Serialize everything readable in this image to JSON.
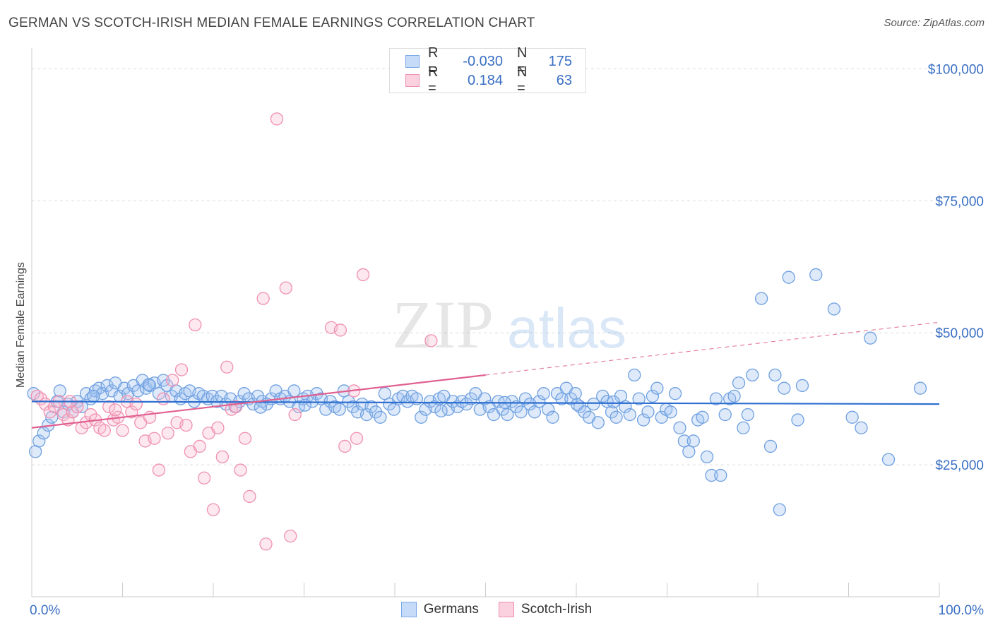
{
  "title": "GERMAN VS SCOTCH-IRISH MEDIAN FEMALE EARNINGS CORRELATION CHART",
  "source": "Source: ZipAtlas.com",
  "watermark": {
    "zip": "ZIP",
    "atlas": "atlas"
  },
  "legend": {
    "rows": [
      {
        "r_label": "R =",
        "r_value": "-0.030",
        "n_label": "N =",
        "n_value": "175",
        "color": "#7aa8e8",
        "fill": "#c5dbf7"
      },
      {
        "r_label": "R =",
        "r_value": "0.184",
        "n_label": "N =",
        "n_value": "63",
        "color": "#f090b0",
        "fill": "#fbd0df"
      }
    ]
  },
  "bottom_legend": [
    {
      "label": "Germans",
      "color": "#7aa8e8",
      "fill": "#c5dbf7"
    },
    {
      "label": "Scotch-Irish",
      "color": "#f090b0",
      "fill": "#fbd0df"
    }
  ],
  "chart_data": {
    "type": "scatter",
    "ylabel": "Median Female Earnings",
    "xlim": [
      0,
      100
    ],
    "ylim": [
      0,
      105000
    ],
    "y_ticks": [
      {
        "value": 25000,
        "label": "$25,000"
      },
      {
        "value": 50000,
        "label": "$50,000"
      },
      {
        "value": 75000,
        "label": "$75,000"
      },
      {
        "value": 100000,
        "label": "$100,000"
      }
    ],
    "x_tick_labels": {
      "left": "0.0%",
      "right": "100.0%"
    },
    "grid": true,
    "series": [
      {
        "name": "Germans",
        "color": "#6fa0e0",
        "fill": "rgba(160,196,240,0.35)",
        "trend": {
          "x0": 0,
          "y0": 37000,
          "x1": 100,
          "y1": 36500,
          "color": "#2f6fd0"
        },
        "points": [
          [
            0.4,
            27500
          ],
          [
            0.8,
            29500
          ],
          [
            1.3,
            31000
          ],
          [
            1.8,
            32500
          ],
          [
            2.2,
            34000
          ],
          [
            2.8,
            37000
          ],
          [
            3.1,
            39000
          ],
          [
            3.5,
            35000
          ],
          [
            4.0,
            36500
          ],
          [
            4.5,
            35000
          ],
          [
            5.0,
            37000
          ],
          [
            5.5,
            36000
          ],
          [
            6.0,
            38500
          ],
          [
            6.5,
            37500
          ],
          [
            7.0,
            39000
          ],
          [
            7.4,
            39500
          ],
          [
            7.8,
            38500
          ],
          [
            8.3,
            40000
          ],
          [
            8.8,
            39000
          ],
          [
            9.2,
            40500
          ],
          [
            9.7,
            38000
          ],
          [
            10.2,
            39500
          ],
          [
            10.6,
            38500
          ],
          [
            11.2,
            40000
          ],
          [
            11.7,
            39000
          ],
          [
            12.2,
            41000
          ],
          [
            12.6,
            39500
          ],
          [
            13.0,
            40000
          ],
          [
            13.5,
            40500
          ],
          [
            14.0,
            38500
          ],
          [
            14.5,
            41000
          ],
          [
            14.9,
            40000
          ],
          [
            15.4,
            38000
          ],
          [
            15.9,
            39000
          ],
          [
            16.4,
            37500
          ],
          [
            16.9,
            38500
          ],
          [
            17.4,
            39000
          ],
          [
            17.9,
            37000
          ],
          [
            18.4,
            38500
          ],
          [
            18.9,
            38000
          ],
          [
            19.4,
            37500
          ],
          [
            19.9,
            38000
          ],
          [
            20.4,
            37000
          ],
          [
            20.9,
            38000
          ],
          [
            21.4,
            36500
          ],
          [
            21.9,
            37500
          ],
          [
            22.4,
            36000
          ],
          [
            22.9,
            37000
          ],
          [
            23.4,
            38500
          ],
          [
            23.9,
            37500
          ],
          [
            24.4,
            36500
          ],
          [
            24.9,
            38000
          ],
          [
            25.4,
            37000
          ],
          [
            25.9,
            36500
          ],
          [
            26.4,
            37500
          ],
          [
            26.9,
            39000
          ],
          [
            27.4,
            37500
          ],
          [
            27.9,
            38000
          ],
          [
            28.4,
            37000
          ],
          [
            28.9,
            39000
          ],
          [
            29.4,
            36000
          ],
          [
            29.9,
            37500
          ],
          [
            30.4,
            38000
          ],
          [
            30.9,
            37000
          ],
          [
            31.4,
            38500
          ],
          [
            31.9,
            37500
          ],
          [
            32.4,
            35500
          ],
          [
            32.9,
            37000
          ],
          [
            33.4,
            36000
          ],
          [
            33.9,
            35500
          ],
          [
            34.4,
            39000
          ],
          [
            34.9,
            37000
          ],
          [
            35.4,
            36000
          ],
          [
            35.9,
            35000
          ],
          [
            36.4,
            36500
          ],
          [
            36.9,
            34500
          ],
          [
            37.4,
            36000
          ],
          [
            37.9,
            35000
          ],
          [
            38.4,
            34000
          ],
          [
            38.9,
            38500
          ],
          [
            39.4,
            36500
          ],
          [
            39.9,
            35500
          ],
          [
            40.4,
            37500
          ],
          [
            40.9,
            38000
          ],
          [
            41.4,
            37000
          ],
          [
            41.9,
            38000
          ],
          [
            42.4,
            37500
          ],
          [
            42.9,
            34000
          ],
          [
            43.4,
            35500
          ],
          [
            43.9,
            37000
          ],
          [
            44.4,
            36000
          ],
          [
            44.9,
            37500
          ],
          [
            45.4,
            38000
          ],
          [
            45.9,
            35500
          ],
          [
            46.4,
            37000
          ],
          [
            46.9,
            36000
          ],
          [
            47.4,
            37000
          ],
          [
            47.9,
            36500
          ],
          [
            48.4,
            37500
          ],
          [
            48.9,
            38500
          ],
          [
            49.4,
            35500
          ],
          [
            49.9,
            37500
          ],
          [
            50.4,
            36000
          ],
          [
            50.9,
            34500
          ],
          [
            51.4,
            37000
          ],
          [
            51.9,
            35500
          ],
          [
            52.4,
            34500
          ],
          [
            52.9,
            37000
          ],
          [
            53.4,
            36000
          ],
          [
            53.9,
            35000
          ],
          [
            54.4,
            37500
          ],
          [
            54.9,
            36500
          ],
          [
            55.4,
            35000
          ],
          [
            55.9,
            37000
          ],
          [
            56.4,
            38500
          ],
          [
            56.9,
            35500
          ],
          [
            57.4,
            34000
          ],
          [
            57.9,
            38500
          ],
          [
            58.4,
            37500
          ],
          [
            58.9,
            39500
          ],
          [
            59.4,
            37500
          ],
          [
            59.9,
            38500
          ],
          [
            60.4,
            36000
          ],
          [
            60.9,
            35000
          ],
          [
            61.4,
            34000
          ],
          [
            61.9,
            36500
          ],
          [
            62.4,
            33000
          ],
          [
            62.9,
            38000
          ],
          [
            63.4,
            37000
          ],
          [
            63.9,
            35000
          ],
          [
            64.4,
            34000
          ],
          [
            64.9,
            38000
          ],
          [
            65.4,
            36000
          ],
          [
            65.9,
            34500
          ],
          [
            66.4,
            42000
          ],
          [
            66.9,
            37500
          ],
          [
            67.4,
            33500
          ],
          [
            67.9,
            35000
          ],
          [
            68.4,
            38000
          ],
          [
            68.9,
            39500
          ],
          [
            69.4,
            34000
          ],
          [
            69.9,
            35500
          ],
          [
            70.4,
            35000
          ],
          [
            70.9,
            38500
          ],
          [
            71.4,
            32000
          ],
          [
            71.9,
            29500
          ],
          [
            72.4,
            27500
          ],
          [
            72.9,
            29500
          ],
          [
            73.4,
            33500
          ],
          [
            73.9,
            34000
          ],
          [
            74.4,
            26500
          ],
          [
            74.9,
            23000
          ],
          [
            75.4,
            37500
          ],
          [
            75.9,
            23000
          ],
          [
            76.4,
            34500
          ],
          [
            76.9,
            37500
          ],
          [
            77.4,
            38000
          ],
          [
            77.9,
            40500
          ],
          [
            78.4,
            32000
          ],
          [
            78.9,
            34500
          ],
          [
            79.4,
            42000
          ],
          [
            80.4,
            56500
          ],
          [
            81.4,
            28500
          ],
          [
            81.9,
            42000
          ],
          [
            82.4,
            16500
          ],
          [
            82.9,
            39500
          ],
          [
            83.4,
            60500
          ],
          [
            84.4,
            33500
          ],
          [
            84.9,
            40000
          ],
          [
            86.4,
            61000
          ],
          [
            88.4,
            54500
          ],
          [
            90.4,
            34000
          ],
          [
            91.4,
            32000
          ],
          [
            92.4,
            49000
          ],
          [
            94.4,
            26000
          ],
          [
            97.9,
            39500
          ],
          [
            0.2,
            38500
          ],
          [
            6.8,
            38000
          ],
          [
            12.9,
            40200
          ],
          [
            25.2,
            35900
          ],
          [
            30.1,
            36300
          ],
          [
            45.1,
            35200
          ],
          [
            52.1,
            36800
          ],
          [
            60.1,
            36400
          ],
          [
            64.1,
            36900
          ]
        ]
      },
      {
        "name": "Scotch-Irish",
        "color": "#f090b0",
        "fill": "rgba(248,190,210,0.35)",
        "trend": {
          "x0": 0,
          "y0": 32000,
          "x1": 50,
          "y1": 42000,
          "x_ext": 100,
          "y_ext": 52000,
          "color": "#e06090"
        },
        "points": [
          [
            0.6,
            38000
          ],
          [
            1.0,
            37500
          ],
          [
            1.5,
            36500
          ],
          [
            2.0,
            35000
          ],
          [
            2.5,
            36000
          ],
          [
            3.0,
            37000
          ],
          [
            3.5,
            34500
          ],
          [
            4.0,
            33500
          ],
          [
            4.5,
            35000
          ],
          [
            5.0,
            36000
          ],
          [
            5.5,
            32000
          ],
          [
            6.0,
            33000
          ],
          [
            6.5,
            34500
          ],
          [
            7.0,
            33500
          ],
          [
            7.5,
            32000
          ],
          [
            8.0,
            31500
          ],
          [
            8.5,
            36000
          ],
          [
            9.0,
            33500
          ],
          [
            9.5,
            34000
          ],
          [
            10.0,
            31500
          ],
          [
            10.5,
            37000
          ],
          [
            11.0,
            35000
          ],
          [
            11.5,
            36500
          ],
          [
            12.0,
            33000
          ],
          [
            12.5,
            29500
          ],
          [
            13.0,
            34000
          ],
          [
            13.5,
            30000
          ],
          [
            14.0,
            24000
          ],
          [
            14.5,
            37500
          ],
          [
            15.0,
            31000
          ],
          [
            15.5,
            41000
          ],
          [
            16.0,
            33000
          ],
          [
            16.5,
            43000
          ],
          [
            17.0,
            32500
          ],
          [
            17.5,
            27500
          ],
          [
            18.0,
            51500
          ],
          [
            18.5,
            28500
          ],
          [
            19.0,
            22500
          ],
          [
            19.5,
            31000
          ],
          [
            20.0,
            16500
          ],
          [
            20.5,
            32000
          ],
          [
            21.0,
            26500
          ],
          [
            21.5,
            43500
          ],
          [
            22.0,
            35500
          ],
          [
            22.5,
            36000
          ],
          [
            23.0,
            24000
          ],
          [
            23.5,
            30000
          ],
          [
            24.0,
            19000
          ],
          [
            25.5,
            56500
          ],
          [
            25.8,
            10000
          ],
          [
            27.0,
            90500
          ],
          [
            28.0,
            58500
          ],
          [
            28.5,
            11500
          ],
          [
            29.0,
            34500
          ],
          [
            33.0,
            51000
          ],
          [
            34.0,
            50500
          ],
          [
            34.5,
            28500
          ],
          [
            35.5,
            39000
          ],
          [
            35.8,
            30000
          ],
          [
            36.5,
            61000
          ],
          [
            44.0,
            48500
          ],
          [
            4.2,
            37000
          ],
          [
            9.2,
            35400
          ]
        ]
      }
    ]
  }
}
